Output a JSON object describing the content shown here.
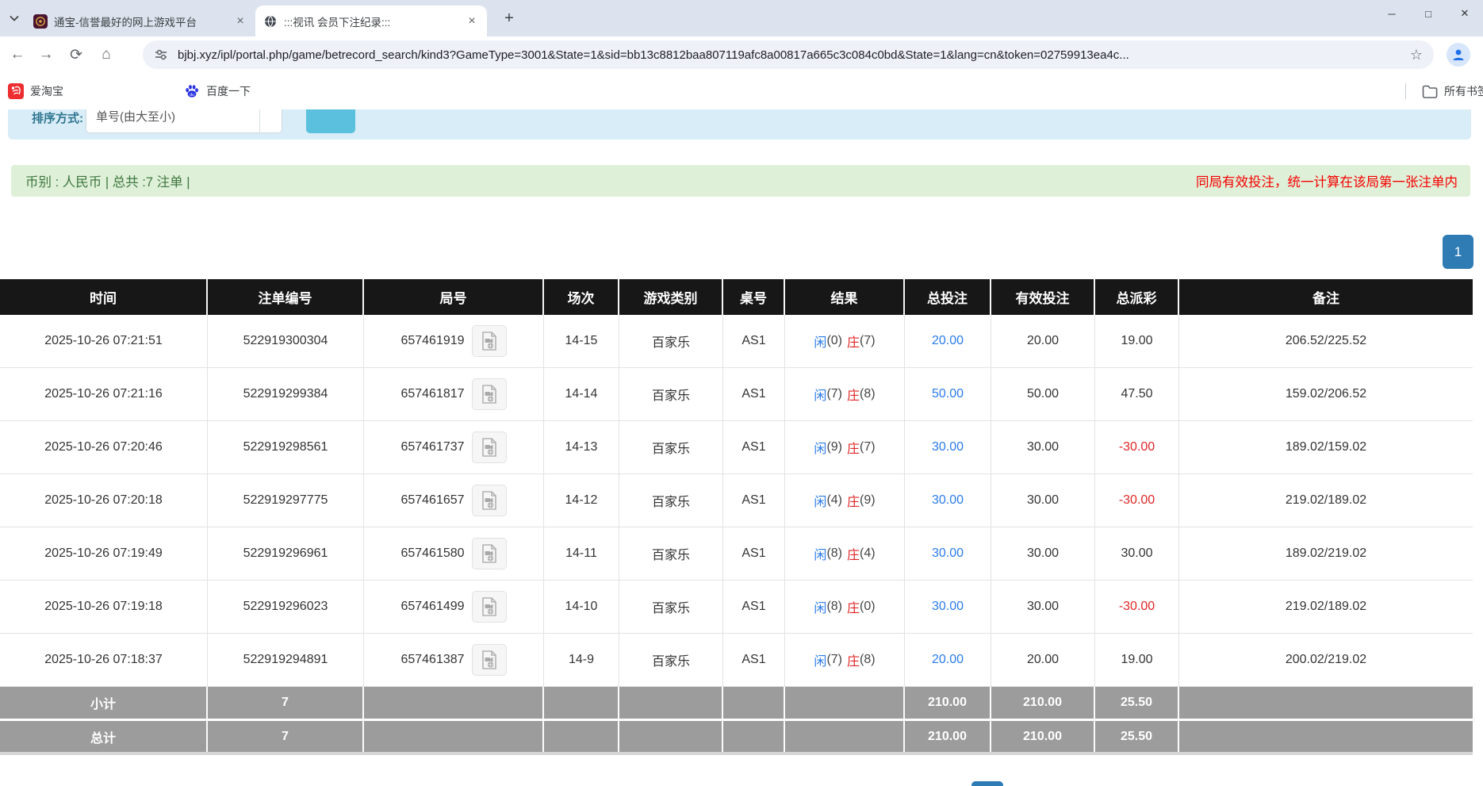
{
  "browser": {
    "tabs": [
      {
        "title": "通宝-信誉最好的网上游戏平台"
      },
      {
        "title": ":::视讯 会员下注纪录:::"
      }
    ],
    "new_tab_glyph": "+",
    "close_glyph": "×",
    "window_controls": {
      "minimize": "─",
      "maximize": "□",
      "close": "✕"
    },
    "nav": {
      "back": "←",
      "forward": "→",
      "reload": "⟳",
      "home": "⌂"
    },
    "url": "bjbj.xyz/ipl/portal.php/game/betrecord_search/kind3?GameType=3001&State=1&sid=bb13c8812baa807119afc8a00817a665c3c084c0bd&State=1&lang=cn&token=02759913ea4c...",
    "star_glyph": "☆",
    "bookmarks": [
      "爱淘宝",
      "百度一下"
    ],
    "all_bookmarks_label": "所有书签"
  },
  "filter": {
    "label": "排序方式:",
    "select_value": "单号(由大至小)",
    "button_label": ""
  },
  "summary": {
    "currency_info": "币别 : 人民币 | 总共 :7 注单 |",
    "notice": "同局有效投注，统一计算在该局第一张注单内"
  },
  "pagination": {
    "page": "1"
  },
  "colors": {
    "link_blue": "#2b7bea",
    "banker_red": "#e02626",
    "notice_red": "#f50000",
    "header_bg": "#171717",
    "success_bg": "#dff0d8",
    "success_text": "#3c763d",
    "sum_row_bg": "#9c9c9c",
    "pagination_blue": "#2f7cb5",
    "panel_bg": "#d8edf7",
    "button_bg": "#5bc0de"
  },
  "table": {
    "headers": [
      "时间",
      "注单编号",
      "局号",
      "场次",
      "游戏类别",
      "桌号",
      "结果",
      "总投注",
      "有效投注",
      "总派彩",
      "备注"
    ],
    "rows": [
      {
        "time": "2025-10-26 07:21:51",
        "bet_id": "522919300304",
        "round": "657461919",
        "session": "14-15",
        "game": "百家乐",
        "table_no": "AS1",
        "player": "闲",
        "player_score": "(0)",
        "banker": "庄",
        "banker_score": "(7)",
        "total_bet": "20.00",
        "valid_bet": "20.00",
        "payout": "19.00",
        "payout_negative": false,
        "remark": "206.52/225.52"
      },
      {
        "time": "2025-10-26 07:21:16",
        "bet_id": "522919299384",
        "round": "657461817",
        "session": "14-14",
        "game": "百家乐",
        "table_no": "AS1",
        "player": "闲",
        "player_score": "(7)",
        "banker": "庄",
        "banker_score": "(8)",
        "total_bet": "50.00",
        "valid_bet": "50.00",
        "payout": "47.50",
        "payout_negative": false,
        "remark": "159.02/206.52"
      },
      {
        "time": "2025-10-26 07:20:46",
        "bet_id": "522919298561",
        "round": "657461737",
        "session": "14-13",
        "game": "百家乐",
        "table_no": "AS1",
        "player": "闲",
        "player_score": "(9)",
        "banker": "庄",
        "banker_score": "(7)",
        "total_bet": "30.00",
        "valid_bet": "30.00",
        "payout": "-30.00",
        "payout_negative": true,
        "remark": "189.02/159.02"
      },
      {
        "time": "2025-10-26 07:20:18",
        "bet_id": "522919297775",
        "round": "657461657",
        "session": "14-12",
        "game": "百家乐",
        "table_no": "AS1",
        "player": "闲",
        "player_score": "(4)",
        "banker": "庄",
        "banker_score": "(9)",
        "total_bet": "30.00",
        "valid_bet": "30.00",
        "payout": "-30.00",
        "payout_negative": true,
        "remark": "219.02/189.02"
      },
      {
        "time": "2025-10-26 07:19:49",
        "bet_id": "522919296961",
        "round": "657461580",
        "session": "14-11",
        "game": "百家乐",
        "table_no": "AS1",
        "player": "闲",
        "player_score": "(8)",
        "banker": "庄",
        "banker_score": "(4)",
        "total_bet": "30.00",
        "valid_bet": "30.00",
        "payout": "30.00",
        "payout_negative": false,
        "remark": "189.02/219.02"
      },
      {
        "time": "2025-10-26 07:19:18",
        "bet_id": "522919296023",
        "round": "657461499",
        "session": "14-10",
        "game": "百家乐",
        "table_no": "AS1",
        "player": "闲",
        "player_score": "(8)",
        "banker": "庄",
        "banker_score": "(0)",
        "total_bet": "30.00",
        "valid_bet": "30.00",
        "payout": "-30.00",
        "payout_negative": true,
        "remark": "219.02/189.02"
      },
      {
        "time": "2025-10-26 07:18:37",
        "bet_id": "522919294891",
        "round": "657461387",
        "session": "14-9",
        "game": "百家乐",
        "table_no": "AS1",
        "player": "闲",
        "player_score": "(7)",
        "banker": "庄",
        "banker_score": "(8)",
        "total_bet": "20.00",
        "valid_bet": "20.00",
        "payout": "19.00",
        "payout_negative": false,
        "remark": "200.02/219.02"
      }
    ],
    "subtotal": {
      "label": "小计",
      "count": "7",
      "total_bet": "210.00",
      "valid_bet": "210.00",
      "payout": "25.50"
    },
    "totals": {
      "label": "总计",
      "count": "7",
      "total_bet": "210.00",
      "valid_bet": "210.00",
      "payout": "25.50"
    }
  }
}
